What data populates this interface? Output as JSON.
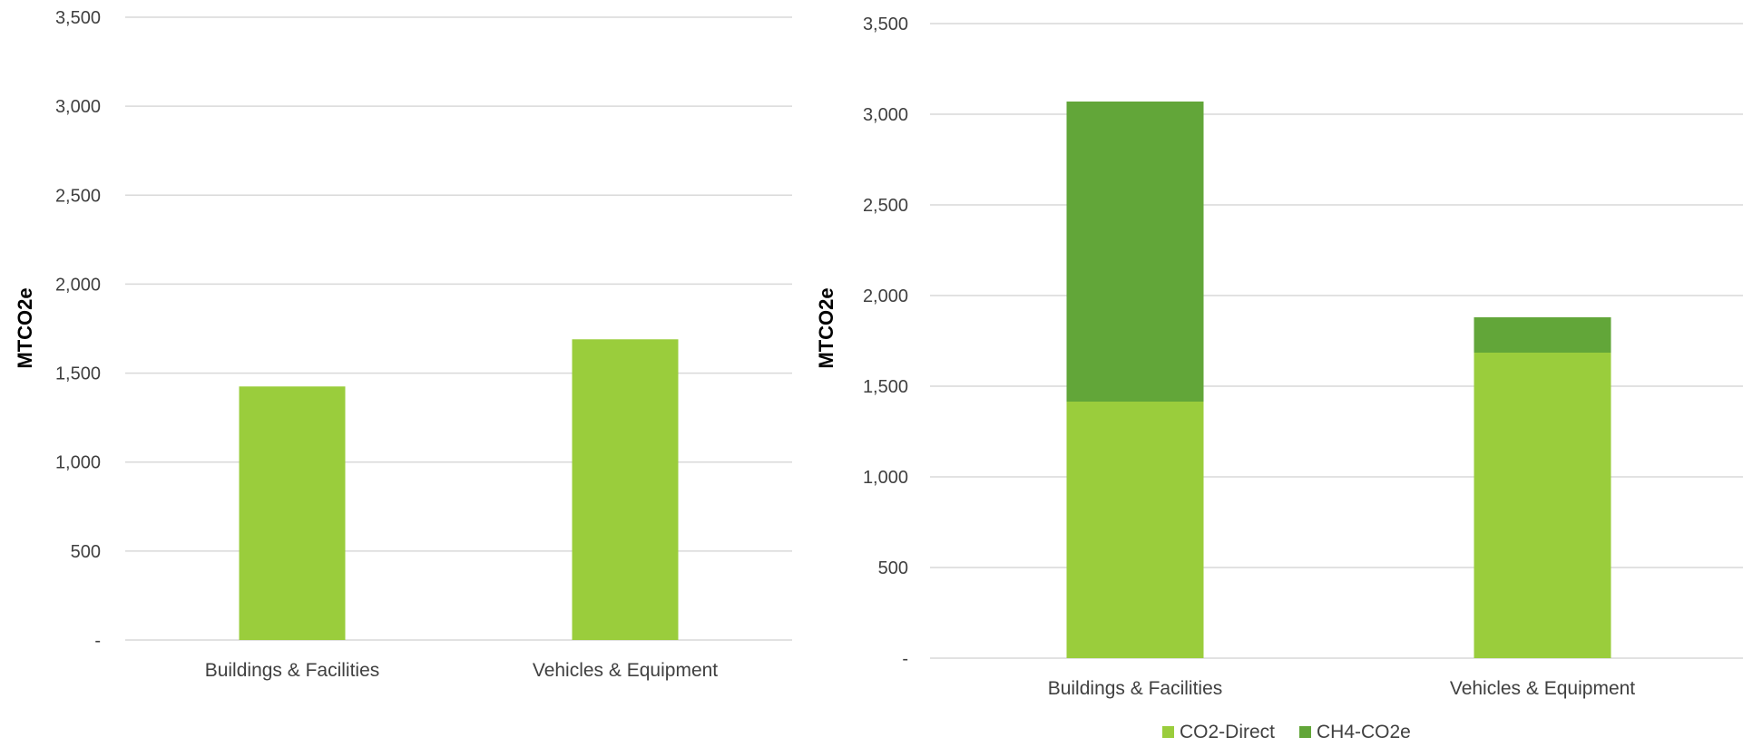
{
  "chart_data": [
    {
      "type": "bar",
      "ylabel": "MTCO2e",
      "ylim": [
        0,
        3500
      ],
      "y_ticks": [
        0,
        500,
        1000,
        1500,
        2000,
        2500,
        3000,
        3500
      ],
      "y_tick_labels": [
        "-",
        "500",
        "1,000",
        "1,500",
        "2,000",
        "2,500",
        "3,000",
        "3,500"
      ],
      "grid": true,
      "categories": [
        "Buildings & Facilities",
        "Vehicles & Equipment"
      ],
      "series": [
        {
          "values": [
            1425,
            1690
          ],
          "color": "#9ACD3C"
        }
      ]
    },
    {
      "type": "bar",
      "stacked": true,
      "ylabel": "MTCO2e",
      "ylim": [
        0,
        3500
      ],
      "y_ticks": [
        0,
        500,
        1000,
        1500,
        2000,
        2500,
        3000,
        3500
      ],
      "y_tick_labels": [
        "-",
        "500",
        "1,000",
        "1,500",
        "2,000",
        "2,500",
        "3,000",
        "3,500"
      ],
      "grid": true,
      "legend": "bottom",
      "categories": [
        "Buildings & Facilities",
        "Vehicles & Equipment"
      ],
      "series": [
        {
          "name": "CO2-Direct",
          "values": [
            1415,
            1685
          ],
          "color": "#9ACD3C"
        },
        {
          "name": "CH4-CO2e",
          "values": [
            1655,
            195
          ],
          "color": "#62A639"
        }
      ]
    }
  ]
}
